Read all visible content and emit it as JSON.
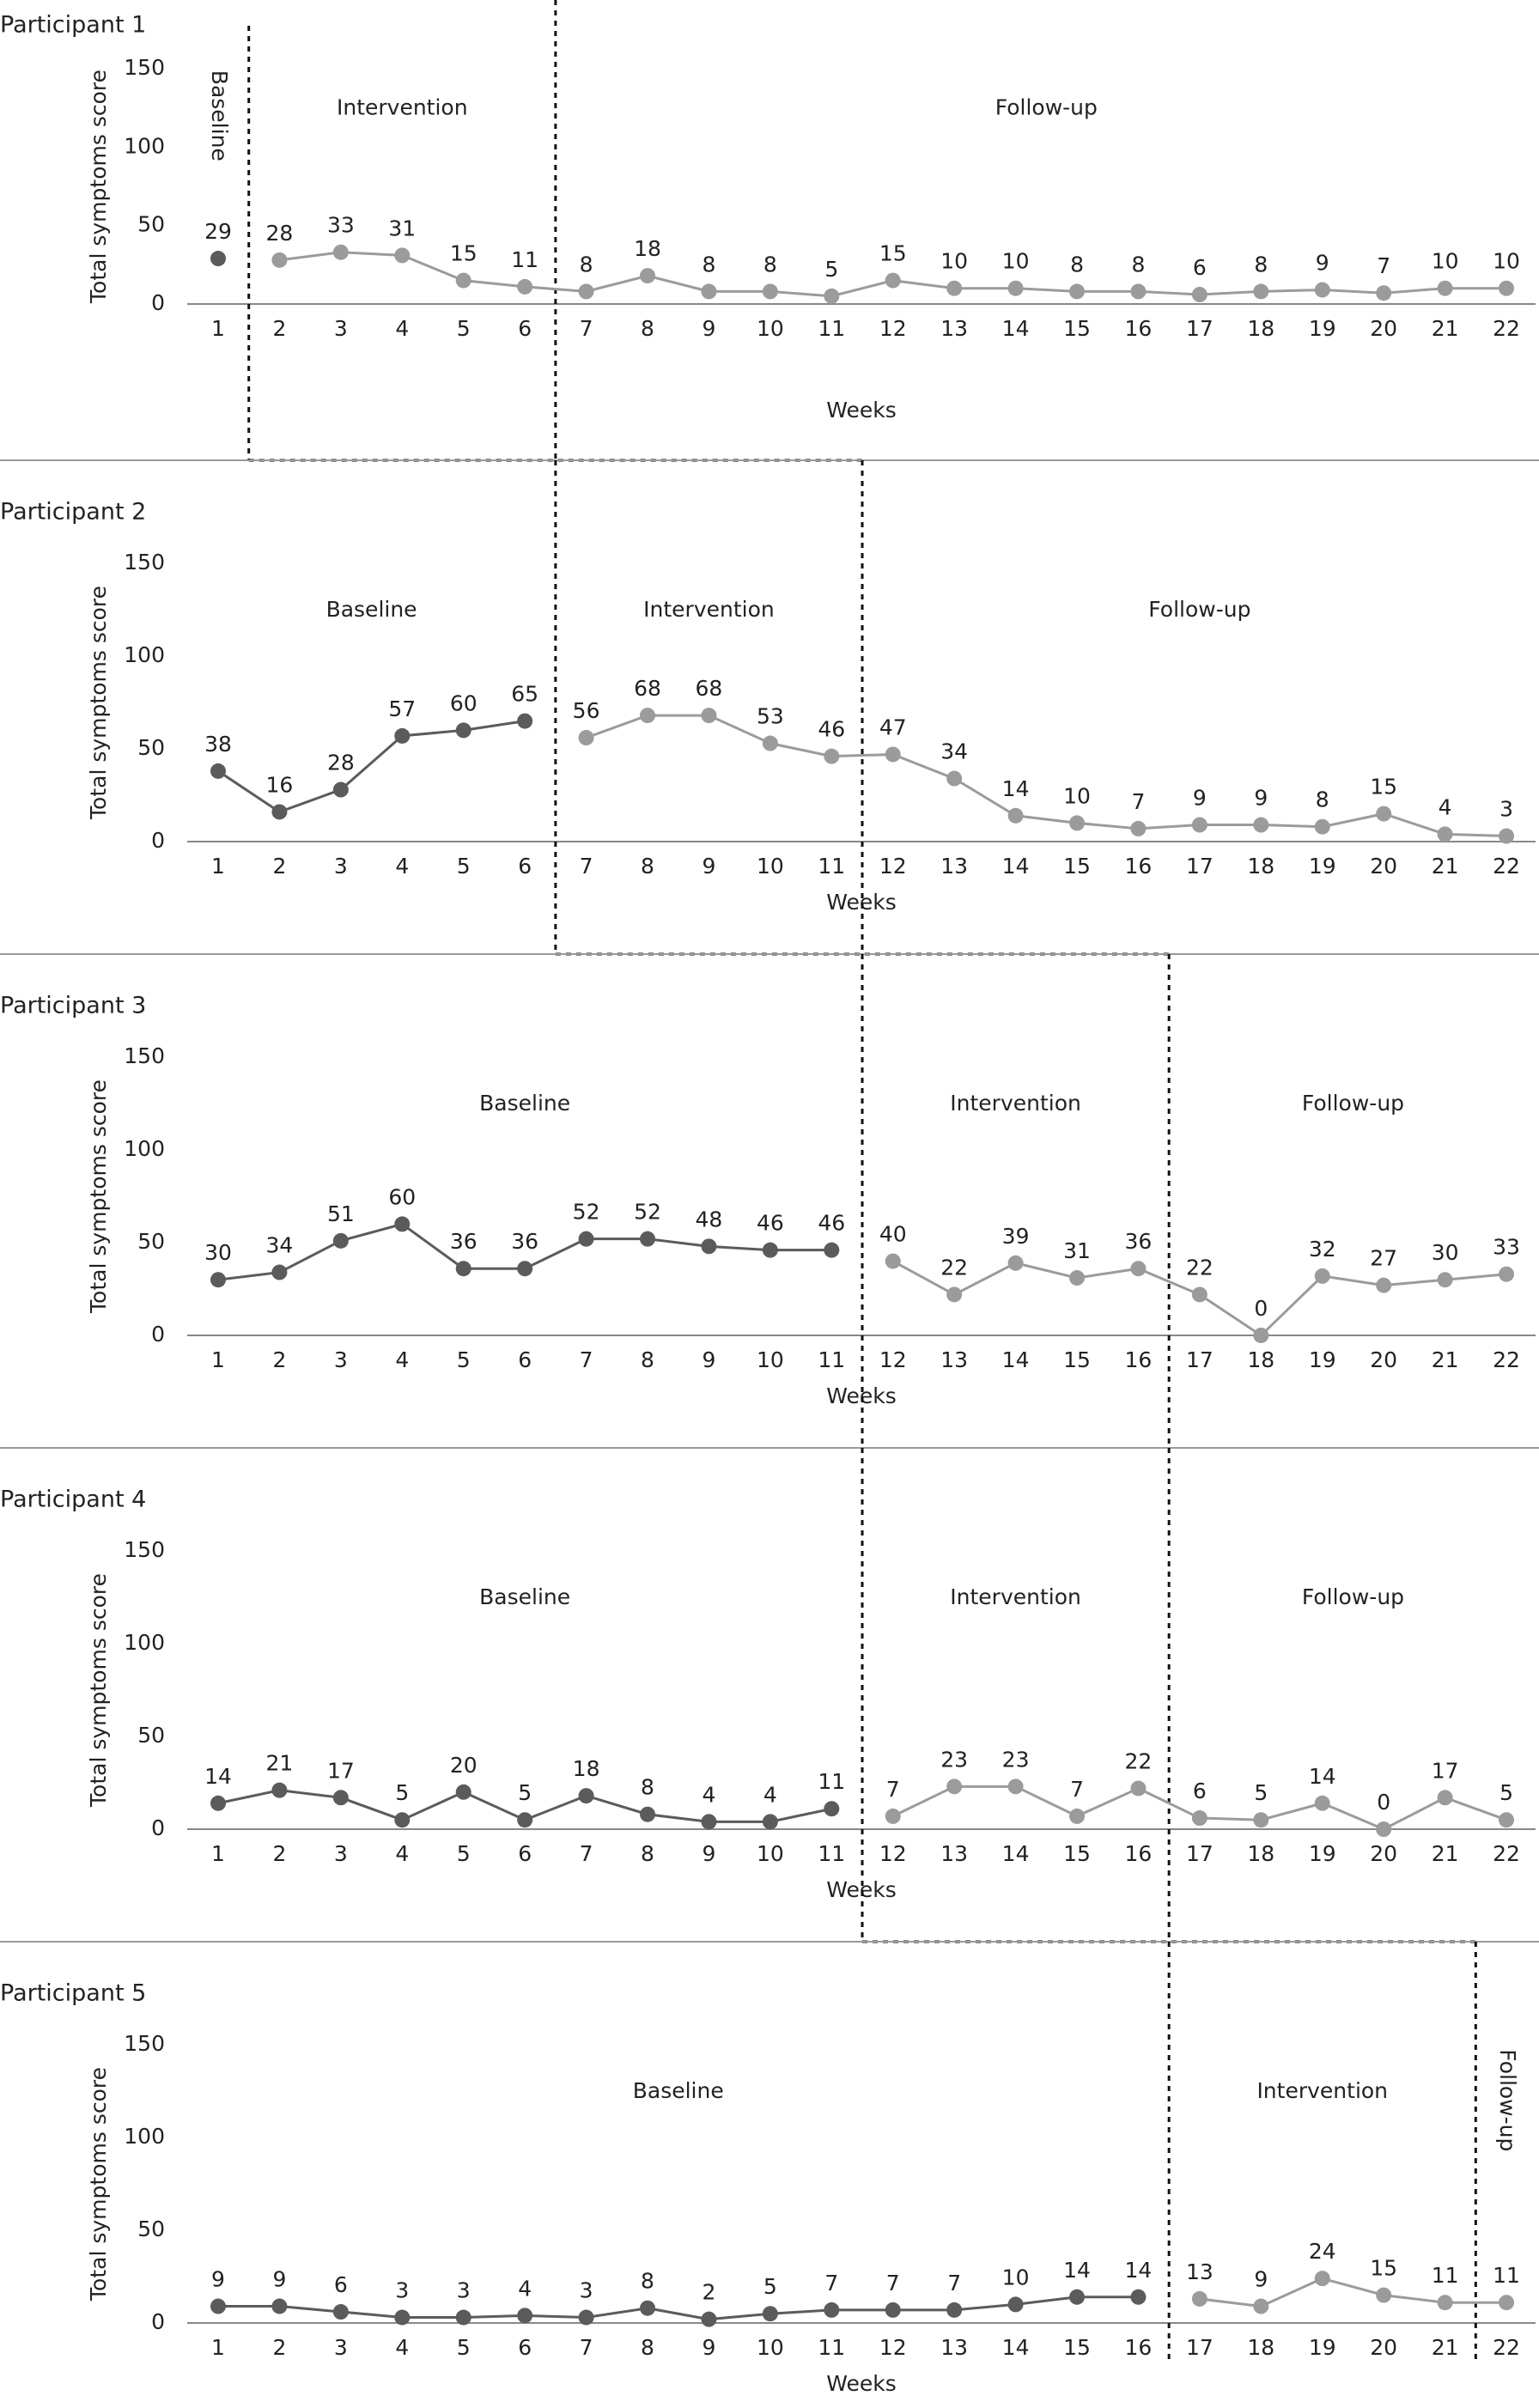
{
  "chart_data": [
    {
      "type": "line",
      "title": "Participant 1",
      "xlabel": "Weeks",
      "ylabel": "Total symptoms score",
      "categories": [
        "1",
        "2",
        "3",
        "4",
        "5",
        "6",
        "7",
        "8",
        "9",
        "10",
        "11",
        "12",
        "13",
        "14",
        "15",
        "16",
        "17",
        "18",
        "19",
        "20",
        "21",
        "22"
      ],
      "ylim": [
        0,
        150
      ],
      "yticks": [
        0,
        50,
        100,
        150
      ],
      "series": [
        {
          "name": "Baseline",
          "color": "#5b5b5b",
          "values": [
            29,
            null,
            null,
            null,
            null,
            null,
            null,
            null,
            null,
            null,
            null,
            null,
            null,
            null,
            null,
            null,
            null,
            null,
            null,
            null,
            null,
            null
          ]
        },
        {
          "name": "Intervention",
          "color": "#9b9b9b",
          "values": [
            null,
            28,
            33,
            31,
            15,
            11,
            null,
            null,
            null,
            null,
            null,
            null,
            null,
            null,
            null,
            null,
            null,
            null,
            null,
            null,
            null,
            null
          ]
        },
        {
          "name": "Follow-up",
          "color": "#9b9b9b",
          "values": [
            null,
            null,
            null,
            null,
            null,
            null,
            8,
            18,
            8,
            8,
            5,
            15,
            10,
            10,
            8,
            8,
            6,
            8,
            9,
            7,
            10,
            10
          ]
        }
      ]
    },
    {
      "type": "line",
      "title": "Participant 2",
      "xlabel": "Weeks",
      "ylabel": "Total symptoms score",
      "categories": [
        "1",
        "2",
        "3",
        "4",
        "5",
        "6",
        "7",
        "8",
        "9",
        "10",
        "11",
        "12",
        "13",
        "14",
        "15",
        "16",
        "17",
        "18",
        "19",
        "20",
        "21",
        "22"
      ],
      "ylim": [
        0,
        150
      ],
      "yticks": [
        0,
        50,
        100,
        150
      ],
      "series": [
        {
          "name": "Baseline",
          "color": "#5b5b5b",
          "values": [
            38,
            16,
            28,
            57,
            60,
            65,
            null,
            null,
            null,
            null,
            null,
            null,
            null,
            null,
            null,
            null,
            null,
            null,
            null,
            null,
            null,
            null
          ]
        },
        {
          "name": "Intervention",
          "color": "#9b9b9b",
          "values": [
            null,
            null,
            null,
            null,
            null,
            null,
            56,
            68,
            68,
            53,
            46,
            null,
            null,
            null,
            null,
            null,
            null,
            null,
            null,
            null,
            null,
            null
          ]
        },
        {
          "name": "Follow-up",
          "color": "#9b9b9b",
          "values": [
            null,
            null,
            null,
            null,
            null,
            null,
            null,
            null,
            null,
            null,
            null,
            47,
            34,
            14,
            10,
            7,
            9,
            9,
            8,
            15,
            4,
            3
          ]
        }
      ]
    },
    {
      "type": "line",
      "title": "Participant 3",
      "xlabel": "Weeks",
      "ylabel": "Total symptoms score",
      "categories": [
        "1",
        "2",
        "3",
        "4",
        "5",
        "6",
        "7",
        "8",
        "9",
        "10",
        "11",
        "12",
        "13",
        "14",
        "15",
        "16",
        "17",
        "18",
        "19",
        "20",
        "21",
        "22"
      ],
      "ylim": [
        0,
        150
      ],
      "yticks": [
        0,
        50,
        100,
        150
      ],
      "series": [
        {
          "name": "Baseline",
          "color": "#5b5b5b",
          "values": [
            30,
            34,
            51,
            60,
            36,
            36,
            52,
            52,
            48,
            46,
            46,
            null,
            null,
            null,
            null,
            null,
            null,
            null,
            null,
            null,
            null,
            null
          ]
        },
        {
          "name": "Intervention",
          "color": "#9b9b9b",
          "values": [
            null,
            null,
            null,
            null,
            null,
            null,
            null,
            null,
            null,
            null,
            null,
            40,
            22,
            39,
            31,
            36,
            null,
            null,
            null,
            null,
            null,
            null
          ]
        },
        {
          "name": "Follow-up",
          "color": "#9b9b9b",
          "values": [
            null,
            null,
            null,
            null,
            null,
            null,
            null,
            null,
            null,
            null,
            null,
            null,
            null,
            null,
            null,
            null,
            22,
            0,
            32,
            27,
            30,
            33
          ]
        }
      ]
    },
    {
      "type": "line",
      "title": "Participant 4",
      "xlabel": "Weeks",
      "ylabel": "Total symptoms score",
      "categories": [
        "1",
        "2",
        "3",
        "4",
        "5",
        "6",
        "7",
        "8",
        "9",
        "10",
        "11",
        "12",
        "13",
        "14",
        "15",
        "16",
        "17",
        "18",
        "19",
        "20",
        "21",
        "22"
      ],
      "ylim": [
        0,
        150
      ],
      "yticks": [
        0,
        50,
        100,
        150
      ],
      "series": [
        {
          "name": "Baseline",
          "color": "#5b5b5b",
          "values": [
            14,
            21,
            17,
            5,
            20,
            5,
            18,
            8,
            4,
            4,
            11,
            null,
            null,
            null,
            null,
            null,
            null,
            null,
            null,
            null,
            null,
            null
          ]
        },
        {
          "name": "Intervention",
          "color": "#9b9b9b",
          "values": [
            null,
            null,
            null,
            null,
            null,
            null,
            null,
            null,
            null,
            null,
            null,
            7,
            23,
            23,
            7,
            22,
            null,
            null,
            null,
            null,
            null,
            null
          ]
        },
        {
          "name": "Follow-up",
          "color": "#9b9b9b",
          "values": [
            null,
            null,
            null,
            null,
            null,
            null,
            null,
            null,
            null,
            null,
            null,
            null,
            null,
            null,
            null,
            null,
            6,
            5,
            14,
            0,
            17,
            5
          ]
        }
      ]
    },
    {
      "type": "line",
      "title": "Participant 5",
      "xlabel": "Weeks",
      "ylabel": "Total symptoms score",
      "categories": [
        "1",
        "2",
        "3",
        "4",
        "5",
        "6",
        "7",
        "8",
        "9",
        "10",
        "11",
        "12",
        "13",
        "14",
        "15",
        "16",
        "17",
        "18",
        "19",
        "20",
        "21",
        "22"
      ],
      "ylim": [
        0,
        150
      ],
      "yticks": [
        0,
        50,
        100,
        150
      ],
      "series": [
        {
          "name": "Baseline",
          "color": "#5b5b5b",
          "values": [
            9,
            9,
            6,
            3,
            3,
            4,
            3,
            8,
            2,
            5,
            7,
            7,
            7,
            10,
            14,
            14,
            null,
            null,
            null,
            null,
            null,
            null
          ]
        },
        {
          "name": "Intervention",
          "color": "#9b9b9b",
          "values": [
            null,
            null,
            null,
            null,
            null,
            null,
            null,
            null,
            null,
            null,
            null,
            null,
            null,
            null,
            null,
            null,
            13,
            9,
            24,
            15,
            11,
            null
          ]
        },
        {
          "name": "Follow-up",
          "color": "#9b9b9b",
          "values": [
            null,
            null,
            null,
            null,
            null,
            null,
            null,
            null,
            null,
            null,
            null,
            null,
            null,
            null,
            null,
            null,
            null,
            null,
            null,
            null,
            null,
            11
          ]
        }
      ]
    }
  ]
}
